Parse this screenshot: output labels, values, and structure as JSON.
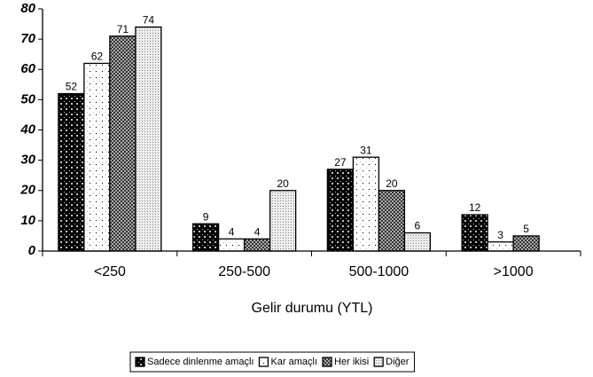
{
  "chart_data": {
    "type": "bar",
    "x_label": "Gelir durumu (YTL)",
    "categories": [
      "<250",
      "250-500",
      "500-1000",
      ">1000"
    ],
    "series": [
      {
        "name": "Sadece dinlenme amaçlı",
        "color": "#000000",
        "values": [
          52,
          9,
          27,
          12
        ]
      },
      {
        "name": "Kar amaçlı",
        "color": "#ffffff",
        "values": [
          62,
          4,
          31,
          3
        ]
      },
      {
        "name": "Her ikisi",
        "color": "#333333",
        "values": [
          71,
          4,
          20,
          5
        ]
      },
      {
        "name": "Diğer",
        "color": "#f2f2f2",
        "values": [
          74,
          20,
          6,
          null
        ]
      }
    ],
    "ylim": [
      0,
      80
    ],
    "yticks": [
      0,
      10,
      20,
      30,
      40,
      50,
      60,
      70,
      80
    ],
    "legend": "bottom",
    "grid": false
  }
}
